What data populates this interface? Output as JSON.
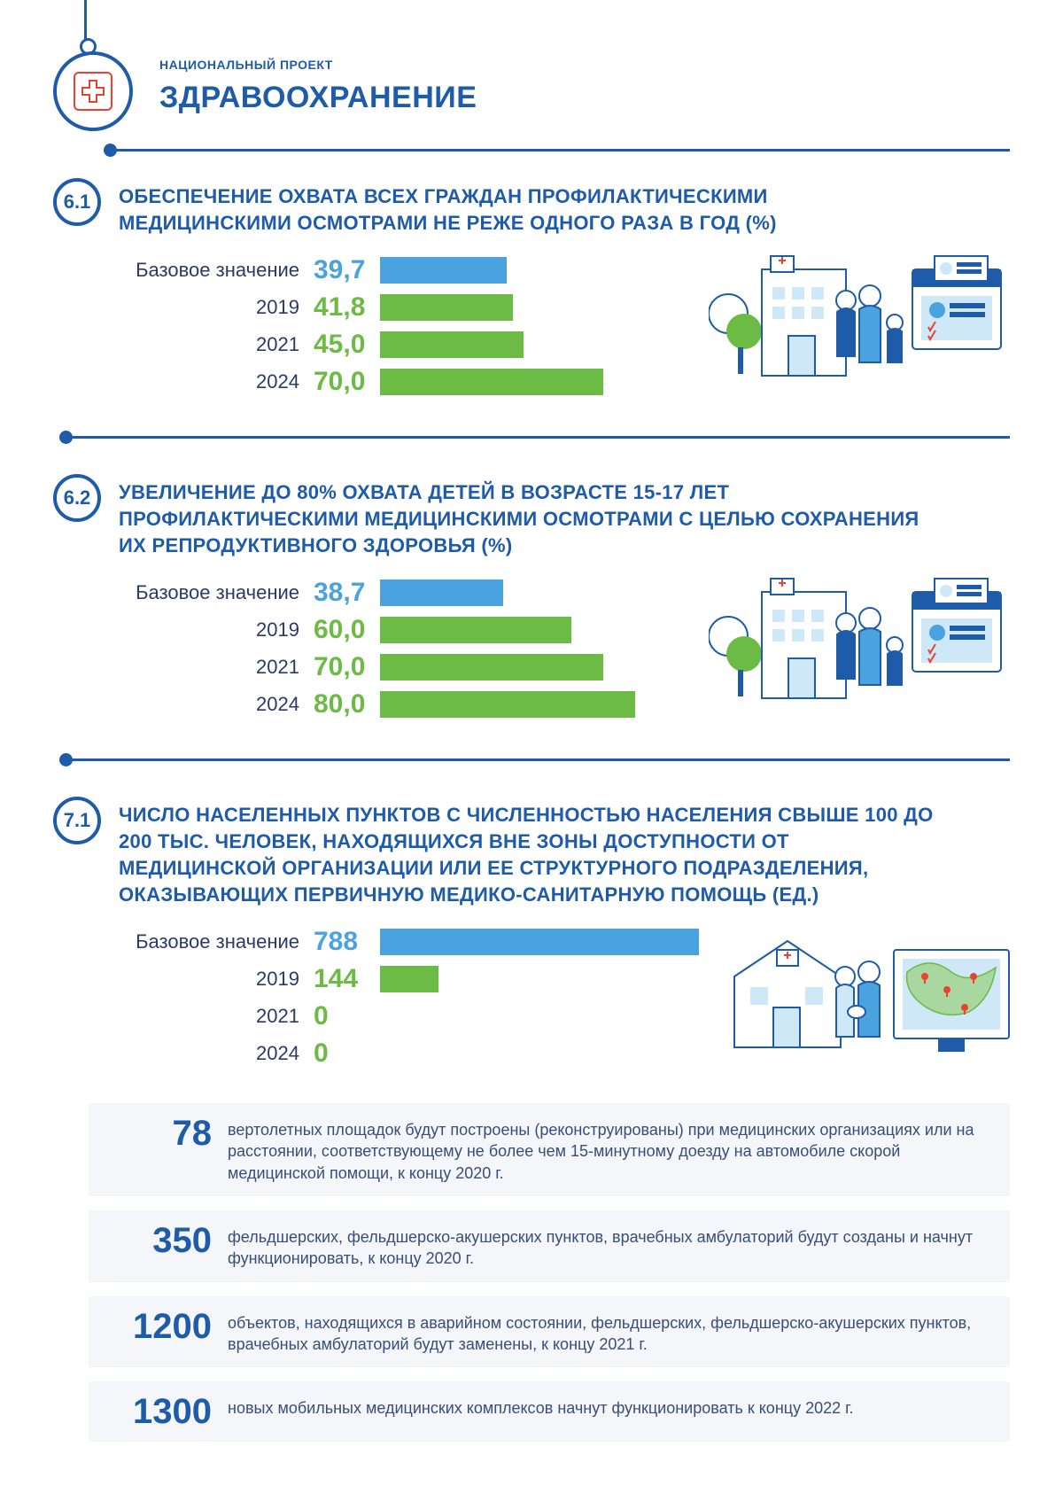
{
  "header": {
    "subtitle": "НАЦИОНАЛЬНЫЙ ПРОЕКТ",
    "title": "ЗДРАВООХРАНЕНИЕ"
  },
  "colors": {
    "primary_blue": "#1e5ba8",
    "bar_blue": "#4aa3df",
    "bar_green": "#6cbb45",
    "value_blue": "#4aa3df",
    "value_green": "#6cbb45",
    "red": "#e8432e",
    "text": "#2b3a67",
    "stat_bg": "#f4f6f9"
  },
  "sections": [
    {
      "id": "6.1",
      "title": "ОБЕСПЕЧЕНИЕ ОХВАТА ВСЕХ ГРАЖДАН ПРОФИЛАКТИЧЕСКИМИ МЕДИЦИНСКИМИ ОСМОТРАМИ НЕ РЕЖЕ ОДНОГО РАЗА В ГОД (%)",
      "max_value": 100,
      "rows": [
        {
          "label": "Базовое значение",
          "value": "39,7",
          "num": 39.7,
          "color": "#4aa3df",
          "value_color": "#4aa3df"
        },
        {
          "label": "2019",
          "value": "41,8",
          "num": 41.8,
          "color": "#6cbb45",
          "value_color": "#6cbb45"
        },
        {
          "label": "2021",
          "value": "45,0",
          "num": 45.0,
          "color": "#6cbb45",
          "value_color": "#6cbb45"
        },
        {
          "label": "2024",
          "value": "70,0",
          "num": 70.0,
          "color": "#6cbb45",
          "value_color": "#6cbb45"
        }
      ],
      "illustration": "hospital-family"
    },
    {
      "id": "6.2",
      "title": "УВЕЛИЧЕНИЕ ДО 80% ОХВАТА ДЕТЕЙ В ВОЗРАСТЕ 15-17 ЛЕТ ПРОФИЛАКТИЧЕСКИМИ МЕДИЦИНСКИМИ ОСМОТРАМИ С ЦЕЛЬЮ СОХРАНЕНИЯ ИХ РЕПРОДУКТИВНОГО ЗДОРОВЬЯ (%)",
      "max_value": 100,
      "rows": [
        {
          "label": "Базовое значение",
          "value": "38,7",
          "num": 38.7,
          "color": "#4aa3df",
          "value_color": "#4aa3df"
        },
        {
          "label": "2019",
          "value": "60,0",
          "num": 60.0,
          "color": "#6cbb45",
          "value_color": "#6cbb45"
        },
        {
          "label": "2021",
          "value": "70,0",
          "num": 70.0,
          "color": "#6cbb45",
          "value_color": "#6cbb45"
        },
        {
          "label": "2024",
          "value": "80,0",
          "num": 80.0,
          "color": "#6cbb45",
          "value_color": "#6cbb45"
        }
      ],
      "illustration": "hospital-family"
    },
    {
      "id": "7.1",
      "title": "ЧИСЛО НАСЕЛЕННЫХ ПУНКТОВ С ЧИСЛЕННОСТЬЮ НАСЕЛЕНИЯ СВЫШЕ 100 ДО 200 ТЫС. ЧЕЛОВЕК, НАХОДЯЩИХСЯ ВНЕ ЗОНЫ ДОСТУПНОСТИ ОТ МЕДИЦИНСКОЙ ОРГАНИЗАЦИИ ИЛИ ЕЕ СТРУКТУРНОГО ПОДРАЗДЕЛЕНИЯ, ОКАЗЫВАЮЩИХ ПЕРВИЧНУЮ МЕДИКО-САНИТАРНУЮ ПОМОЩЬ (ЕД.)",
      "max_value": 788,
      "rows": [
        {
          "label": "Базовое значение",
          "value": "788",
          "num": 788,
          "color": "#4aa3df",
          "value_color": "#4aa3df"
        },
        {
          "label": "2019",
          "value": "144",
          "num": 144,
          "color": "#6cbb45",
          "value_color": "#6cbb45"
        },
        {
          "label": "2021",
          "value": "0",
          "num": 0,
          "color": "#6cbb45",
          "value_color": "#6cbb45"
        },
        {
          "label": "2024",
          "value": "0",
          "num": 0,
          "color": "#6cbb45",
          "value_color": "#6cbb45"
        }
      ],
      "illustration": "clinic-map"
    }
  ],
  "stats": [
    {
      "num": "78",
      "text": "вертолетных площадок будут построены (реконструированы) при медицинских организациях или на расстоянии, соответствующему не более чем 15-минутному доезду на автомобиле скорой медицинской помощи, к концу 2020 г."
    },
    {
      "num": "350",
      "text": "фельдшерских, фельдшерско-акушерских пунктов, врачебных амбулаторий будут созданы и начнут функционировать, к концу 2020 г."
    },
    {
      "num": "1200",
      "text": "объектов, находящихся в аварийном состоянии, фельдшерских, фельдшерско-акушерских пунктов, врачебных амбулаторий будут заменены, к концу 2021 г."
    },
    {
      "num": "1300",
      "text": "новых мобильных медицинских комплексов начнут функционировать к концу 2022 г."
    }
  ]
}
